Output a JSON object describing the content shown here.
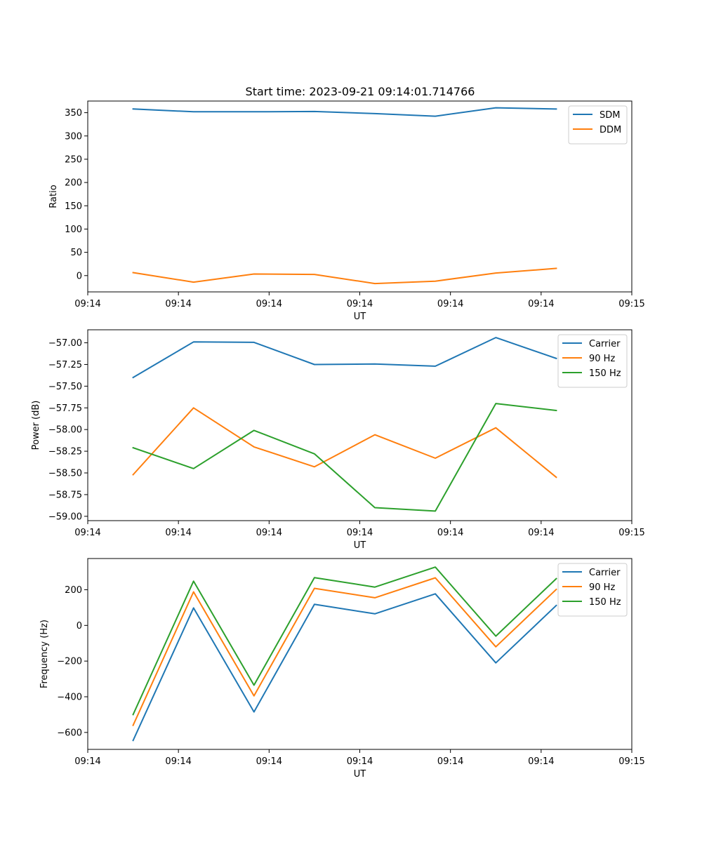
{
  "figure_title": "Start time: 2023-09-21 09:14:01.714766",
  "colors": {
    "blue": "#1f77b4",
    "orange": "#ff7f0e",
    "green": "#2ca02c"
  },
  "chart_data": [
    {
      "type": "line",
      "title": "Start time: 2023-09-21 09:14:01.714766",
      "xlabel": "UT",
      "ylabel": "Ratio",
      "xlim": [
        0,
        9
      ],
      "x": [
        0.75,
        1.75,
        2.75,
        3.75,
        4.75,
        5.75,
        6.75,
        7.75
      ],
      "xticks": [
        0,
        1.5,
        3,
        4.5,
        6,
        7.5,
        9
      ],
      "xtick_labels": [
        "09:14",
        "09:14",
        "09:14",
        "09:14",
        "09:14",
        "09:14",
        "09:15"
      ],
      "ylim": [
        -35,
        375
      ],
      "yticks": [
        0,
        50,
        100,
        150,
        200,
        250,
        300,
        350
      ],
      "ytick_labels": [
        "0",
        "50",
        "100",
        "150",
        "200",
        "250",
        "300",
        "350"
      ],
      "legend_position": "top-right",
      "series": [
        {
          "name": "SDM",
          "color": "#1f77b4",
          "values": [
            358,
            352,
            352,
            352.5,
            348,
            342.5,
            360.5,
            358
          ]
        },
        {
          "name": "DDM",
          "color": "#ff7f0e",
          "values": [
            6.5,
            -14,
            3.5,
            2.5,
            -17,
            -12,
            5.5,
            15.5
          ]
        }
      ]
    },
    {
      "type": "line",
      "title": "",
      "xlabel": "UT",
      "ylabel": "Power (dB)",
      "xlim": [
        0,
        9
      ],
      "x": [
        0.75,
        1.75,
        2.75,
        3.75,
        4.75,
        5.75,
        6.75,
        7.75
      ],
      "xticks": [
        0,
        1.5,
        3,
        4.5,
        6,
        7.5,
        9
      ],
      "xtick_labels": [
        "09:14",
        "09:14",
        "09:14",
        "09:14",
        "09:14",
        "09:14",
        "09:15"
      ],
      "ylim": [
        -59.05,
        -56.85
      ],
      "yticks": [
        -59.0,
        -58.75,
        -58.5,
        -58.25,
        -58.0,
        -57.75,
        -57.5,
        -57.25,
        -57.0
      ],
      "ytick_labels": [
        "−59.00",
        "−58.75",
        "−58.50",
        "−58.25",
        "−58.00",
        "−57.75",
        "−57.50",
        "−57.25",
        "−57.00"
      ],
      "legend_position": "top-right",
      "series": [
        {
          "name": "Carrier",
          "color": "#1f77b4",
          "values": [
            -57.4,
            -56.99,
            -56.995,
            -57.25,
            -57.245,
            -57.27,
            -56.94,
            -57.18
          ]
        },
        {
          "name": "90 Hz",
          "color": "#ff7f0e",
          "values": [
            -58.52,
            -57.75,
            -58.2,
            -58.43,
            -58.06,
            -58.33,
            -57.98,
            -58.55
          ]
        },
        {
          "name": "150 Hz",
          "color": "#2ca02c",
          "values": [
            -58.21,
            -58.45,
            -58.01,
            -58.28,
            -58.9,
            -58.94,
            -57.7,
            -57.78
          ]
        }
      ]
    },
    {
      "type": "line",
      "title": "",
      "xlabel": "UT",
      "ylabel": "Frequency (Hz)",
      "xlim": [
        0,
        9
      ],
      "x": [
        0.75,
        1.75,
        2.75,
        3.75,
        4.75,
        5.75,
        6.75,
        7.75
      ],
      "xticks": [
        0,
        1.5,
        3,
        4.5,
        6,
        7.5,
        9
      ],
      "xtick_labels": [
        "09:14",
        "09:14",
        "09:14",
        "09:14",
        "09:14",
        "09:14",
        "09:15"
      ],
      "ylim": [
        -695,
        375
      ],
      "yticks": [
        -600,
        -400,
        -200,
        0,
        200
      ],
      "ytick_labels": [
        "−600",
        "−400",
        "−200",
        "0",
        "200"
      ],
      "legend_position": "top-right",
      "series": [
        {
          "name": "Carrier",
          "color": "#1f77b4",
          "values": [
            -645,
            98,
            -485,
            118,
            65,
            177,
            -210,
            112
          ]
        },
        {
          "name": "90 Hz",
          "color": "#ff7f0e",
          "values": [
            -560,
            188,
            -395,
            208,
            155,
            267,
            -120,
            202
          ]
        },
        {
          "name": "150 Hz",
          "color": "#2ca02c",
          "values": [
            -500,
            248,
            -335,
            268,
            215,
            327,
            -60,
            262
          ]
        }
      ]
    }
  ]
}
